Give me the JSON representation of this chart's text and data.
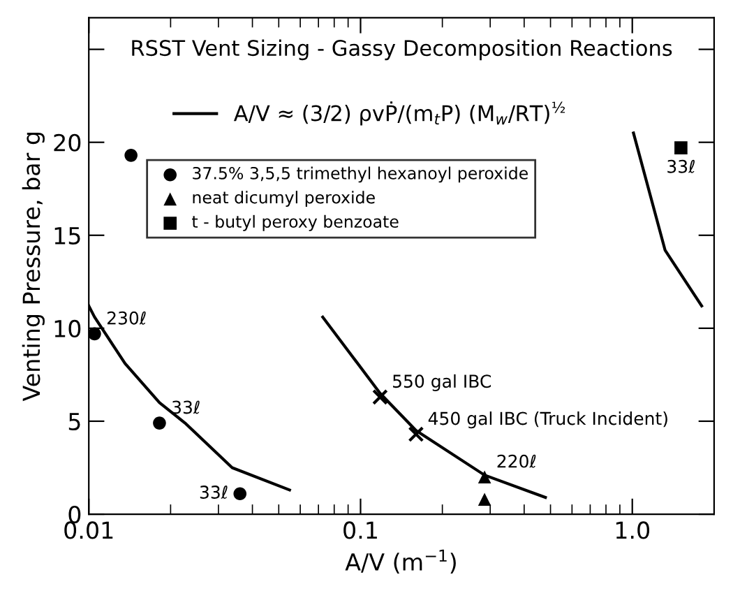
{
  "chart_data": {
    "type": "scatter",
    "title": "RSST Vent Sizing - Gassy Decomposition Reactions",
    "xlabel": "A/V (m$^{−1}$)",
    "ylabel": "Venting Pressure, bar g",
    "log": "x",
    "xlim": [
      0.01,
      2.0
    ],
    "ylim": [
      0,
      26.7
    ],
    "xticks": [
      0.01,
      0.1,
      {
        "value": 1,
        "label": "1.0"
      }
    ],
    "yticks": [
      0,
      5,
      10,
      15,
      20,
      {
        "value": 25,
        "label": null
      }
    ],
    "grid": false,
    "legend": "top left",
    "series": [
      {
        "name": "37.5% 3,5,5 trimethyl hexanoyl peroxide",
        "marker": "circle",
        "color": "#000000",
        "x": [
          0.0105,
          0.0182,
          0.036,
          0.0143
        ],
        "values": [
          9.7,
          4.9,
          1.1,
          19.3
        ]
      },
      {
        "name": "neat dicumyl peroxide",
        "marker": "triangle",
        "color": "#000000",
        "x": [
          0.286,
          0.286
        ],
        "values": [
          2.0,
          0.8
        ]
      },
      {
        "name": "t - butyl peroxy benzoate",
        "marker": "square",
        "color": "#000000",
        "x": [
          1.51
        ],
        "values": [
          19.7
        ]
      },
      {
        "marker": "cross",
        "color": "#000000",
        "x": [
          0.118,
          0.16
        ],
        "values": [
          6.3,
          4.3
        ]
      },
      {
        "name": "A/V ≈ (3/2) ρvṖ/(m$_{t}$P) (M$_{w}$/RT)$^{½}$",
        "type": "line",
        "color": "#000000",
        "x": [
          0.01,
          0.0105,
          0.0136,
          0.0182,
          0.0226,
          0.0337,
          0.0548
        ],
        "values": [
          11.2,
          10.6,
          8.1,
          6.0,
          4.9,
          2.5,
          1.3
        ]
      },
      {
        "type": "line",
        "color": "#000000",
        "x": [
          0.0726,
          0.118,
          0.16,
          0.286,
          0.479
        ],
        "values": [
          10.6,
          6.5,
          4.5,
          2.1,
          0.9
        ]
      },
      {
        "type": "line",
        "color": "#000000",
        "x": [
          1.01,
          1.32,
          1.8
        ],
        "values": [
          20.5,
          14.2,
          11.2
        ]
      }
    ],
    "annotations": [
      {
        "text": "230ℓ",
        "x": 0.0105,
        "y": 9.7
      },
      {
        "text": "33ℓ",
        "x": 0.0182,
        "y": 4.9
      },
      {
        "text": "33ℓ",
        "x": 0.036,
        "y": 1.1
      },
      {
        "text": "220ℓ",
        "x": 0.286,
        "y": 2.0
      },
      {
        "text": "33ℓ",
        "x": 1.51,
        "y": 19.7
      },
      {
        "text": "550 gal IBC",
        "x": 0.118,
        "y": 6.3
      },
      {
        "text": "450 gal IBC (Truck Incident)",
        "x": 0.16,
        "y": 4.3
      }
    ]
  }
}
